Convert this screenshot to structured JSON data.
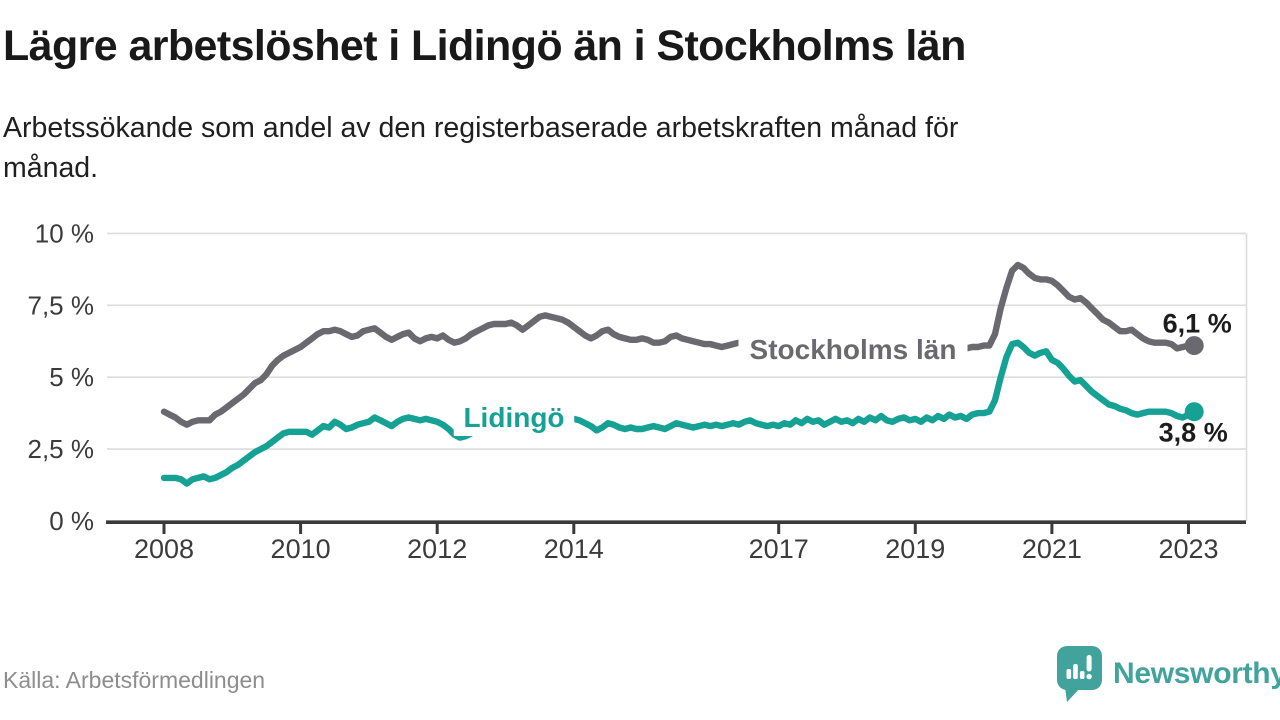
{
  "header": {
    "title": "Lägre arbetslöshet i Lidingö än i Stockholms län",
    "subtitle_line1": "Arbetssökande som andel av den registerbaserade arbetskraften månad för",
    "subtitle_line2": "månad."
  },
  "footer": {
    "source": "Källa: Arbetsförmedlingen",
    "brand": "Newsworthy",
    "brand_color": "#41a39c"
  },
  "chart_data": {
    "type": "line",
    "title": "Lägre arbetslöshet i Lidingö än i Stockholms län",
    "subtitle": "Arbetssökande som andel av den registerbaserade arbetskraften månad för månad.",
    "frequency": "monthly",
    "x_start": "2008-01",
    "x_end": "2023-02",
    "ylim": [
      0,
      10
    ],
    "grid": "horizontal",
    "legend_position": "inline-labels",
    "y_axis": {
      "ticks": [
        {
          "value": 0,
          "label": "0 %"
        },
        {
          "value": 2.5,
          "label": "2,5 %"
        },
        {
          "value": 5,
          "label": "5 %"
        },
        {
          "value": 7.5,
          "label": "7,5 %"
        },
        {
          "value": 10,
          "label": "10 %"
        }
      ]
    },
    "x_axis": {
      "ticks": [
        2008,
        2010,
        2012,
        2014,
        2017,
        2019,
        2021,
        2023
      ]
    },
    "series": [
      {
        "name": "Stockholms län",
        "color": "#6b6970",
        "end_label": "6,1 %",
        "end_value": 6.1,
        "values": [
          3.8,
          3.7,
          3.6,
          3.45,
          3.35,
          3.45,
          3.5,
          3.5,
          3.5,
          3.7,
          3.8,
          3.95,
          4.1,
          4.25,
          4.4,
          4.6,
          4.8,
          4.9,
          5.1,
          5.4,
          5.6,
          5.75,
          5.85,
          5.95,
          6.05,
          6.2,
          6.35,
          6.5,
          6.6,
          6.6,
          6.65,
          6.6,
          6.5,
          6.4,
          6.45,
          6.6,
          6.65,
          6.7,
          6.55,
          6.4,
          6.3,
          6.4,
          6.5,
          6.55,
          6.35,
          6.25,
          6.35,
          6.4,
          6.35,
          6.45,
          6.3,
          6.2,
          6.25,
          6.35,
          6.5,
          6.6,
          6.7,
          6.8,
          6.85,
          6.85,
          6.85,
          6.9,
          6.8,
          6.65,
          6.8,
          6.95,
          7.1,
          7.15,
          7.1,
          7.05,
          7.0,
          6.9,
          6.75,
          6.6,
          6.45,
          6.35,
          6.45,
          6.6,
          6.65,
          6.5,
          6.4,
          6.35,
          6.3,
          6.3,
          6.35,
          6.3,
          6.2,
          6.2,
          6.25,
          6.4,
          6.45,
          6.35,
          6.3,
          6.25,
          6.2,
          6.15,
          6.15,
          6.1,
          6.05,
          6.1,
          6.15,
          6.2,
          6.25,
          6.2,
          6.1,
          6.05,
          6.05,
          6.1,
          6.1,
          6.05,
          6.0,
          6.0,
          6.05,
          6.1,
          6.15,
          6.1,
          6.0,
          5.95,
          5.95,
          6.0,
          6.0,
          5.95,
          5.9,
          5.9,
          5.95,
          6.0,
          6.05,
          6.0,
          5.9,
          5.9,
          5.95,
          6.0,
          6.0,
          5.95,
          5.95,
          6.0,
          6.0,
          6.05,
          6.1,
          6.05,
          6.0,
          6.0,
          6.05,
          6.05,
          6.1,
          6.1,
          6.5,
          7.4,
          8.1,
          8.7,
          8.9,
          8.8,
          8.6,
          8.45,
          8.4,
          8.4,
          8.35,
          8.2,
          8.0,
          7.8,
          7.7,
          7.75,
          7.6,
          7.4,
          7.2,
          7.0,
          6.9,
          6.75,
          6.6,
          6.6,
          6.65,
          6.5,
          6.35,
          6.25,
          6.2,
          6.2,
          6.2,
          6.15,
          6.0,
          6.05,
          6.1,
          6.1
        ]
      },
      {
        "name": "Lidingö",
        "color": "#16a195",
        "end_label": "3,8 %",
        "end_value": 3.8,
        "values": [
          1.5,
          1.5,
          1.5,
          1.45,
          1.3,
          1.45,
          1.5,
          1.55,
          1.45,
          1.5,
          1.6,
          1.7,
          1.85,
          1.95,
          2.1,
          2.25,
          2.4,
          2.5,
          2.6,
          2.75,
          2.9,
          3.05,
          3.1,
          3.1,
          3.1,
          3.1,
          3.0,
          3.15,
          3.3,
          3.25,
          3.45,
          3.35,
          3.2,
          3.25,
          3.35,
          3.4,
          3.45,
          3.6,
          3.5,
          3.4,
          3.3,
          3.45,
          3.55,
          3.6,
          3.55,
          3.5,
          3.55,
          3.5,
          3.45,
          3.35,
          3.2,
          3.0,
          2.9,
          2.95,
          3.05,
          3.1,
          3.2,
          3.25,
          3.3,
          3.35,
          3.4,
          3.45,
          3.5,
          3.5,
          3.45,
          3.5,
          3.55,
          3.5,
          3.5,
          3.55,
          3.55,
          3.55,
          3.55,
          3.5,
          3.4,
          3.3,
          3.15,
          3.25,
          3.4,
          3.35,
          3.25,
          3.2,
          3.25,
          3.2,
          3.2,
          3.25,
          3.3,
          3.25,
          3.2,
          3.3,
          3.4,
          3.35,
          3.3,
          3.25,
          3.3,
          3.35,
          3.3,
          3.35,
          3.3,
          3.35,
          3.4,
          3.35,
          3.45,
          3.5,
          3.4,
          3.35,
          3.3,
          3.35,
          3.3,
          3.4,
          3.35,
          3.5,
          3.4,
          3.55,
          3.45,
          3.5,
          3.35,
          3.45,
          3.55,
          3.45,
          3.5,
          3.4,
          3.55,
          3.45,
          3.6,
          3.5,
          3.65,
          3.5,
          3.45,
          3.55,
          3.6,
          3.5,
          3.55,
          3.45,
          3.6,
          3.5,
          3.65,
          3.55,
          3.7,
          3.6,
          3.65,
          3.55,
          3.7,
          3.75,
          3.75,
          3.8,
          4.2,
          5.0,
          5.7,
          6.15,
          6.2,
          6.05,
          5.85,
          5.75,
          5.85,
          5.9,
          5.6,
          5.5,
          5.3,
          5.05,
          4.85,
          4.9,
          4.7,
          4.5,
          4.35,
          4.2,
          4.05,
          4.0,
          3.9,
          3.85,
          3.75,
          3.7,
          3.75,
          3.8,
          3.8,
          3.8,
          3.8,
          3.75,
          3.65,
          3.6,
          3.7,
          3.8
        ]
      }
    ]
  }
}
